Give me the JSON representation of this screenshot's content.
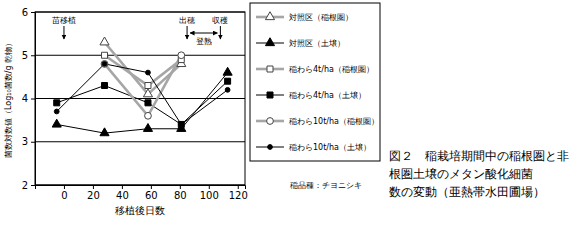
{
  "chart_data": {
    "type": "line",
    "title": [
      "図２　稲栽培期間中の稲根圏と非",
      "根圏土壌のメタン酸化細菌",
      "数の変動（亜熱帯水田圃場）"
    ],
    "x_label": "移植後日数",
    "y_label": "菌数対数値（Log₁₀菌数/g 乾物）",
    "x": [
      -5,
      28,
      58,
      81,
      113
    ],
    "xlim": [
      -20,
      125
    ],
    "xticks": [
      0,
      20,
      40,
      60,
      80,
      100,
      120
    ],
    "ylim": [
      2,
      6
    ],
    "yticks": [
      2,
      3,
      4,
      5,
      6
    ],
    "grid": true,
    "legend": "right",
    "series": [
      {
        "name": "対照区（稲根圏）",
        "color": "#a6a6a6",
        "marker": "open-triangle",
        "line_style": "thick",
        "values": [
          null,
          5.3,
          4.1,
          4.8,
          null
        ]
      },
      {
        "name": "対照区（土壌）",
        "color": "#000000",
        "marker": "triangle",
        "line_style": "thin",
        "values": [
          3.4,
          3.2,
          3.3,
          3.3,
          4.6
        ]
      },
      {
        "name": "稲わら4t/ha（稲根圏）",
        "color": "#a6a6a6",
        "marker": "open-square",
        "line_style": "thick",
        "values": [
          null,
          5.0,
          4.3,
          4.9,
          null
        ]
      },
      {
        "name": "稲わら4t/ha（土壌）",
        "color": "#000000",
        "marker": "square",
        "line_style": "thin",
        "values": [
          3.9,
          4.3,
          3.9,
          3.4,
          4.4
        ]
      },
      {
        "name": "稲わら10t/ha（稲根圏）",
        "color": "#a6a6a6",
        "marker": "open-circle",
        "line_style": "thick",
        "values": [
          null,
          4.8,
          3.6,
          5.0,
          null
        ]
      },
      {
        "name": "稲わら10t/ha（土壌）",
        "color": "#000000",
        "marker": "circle",
        "line_style": "thin",
        "values": [
          3.7,
          4.8,
          4.6,
          3.4,
          4.2
        ]
      }
    ],
    "annotations": [
      {
        "text": "苗移植",
        "x": 0
      },
      {
        "text": "出穂",
        "x": 85
      },
      {
        "text": "登熟",
        "x_range": [
          85,
          108
        ]
      },
      {
        "text": "収穫",
        "x": 108
      },
      {
        "text": "稲品種：チヨニシキ"
      }
    ]
  }
}
